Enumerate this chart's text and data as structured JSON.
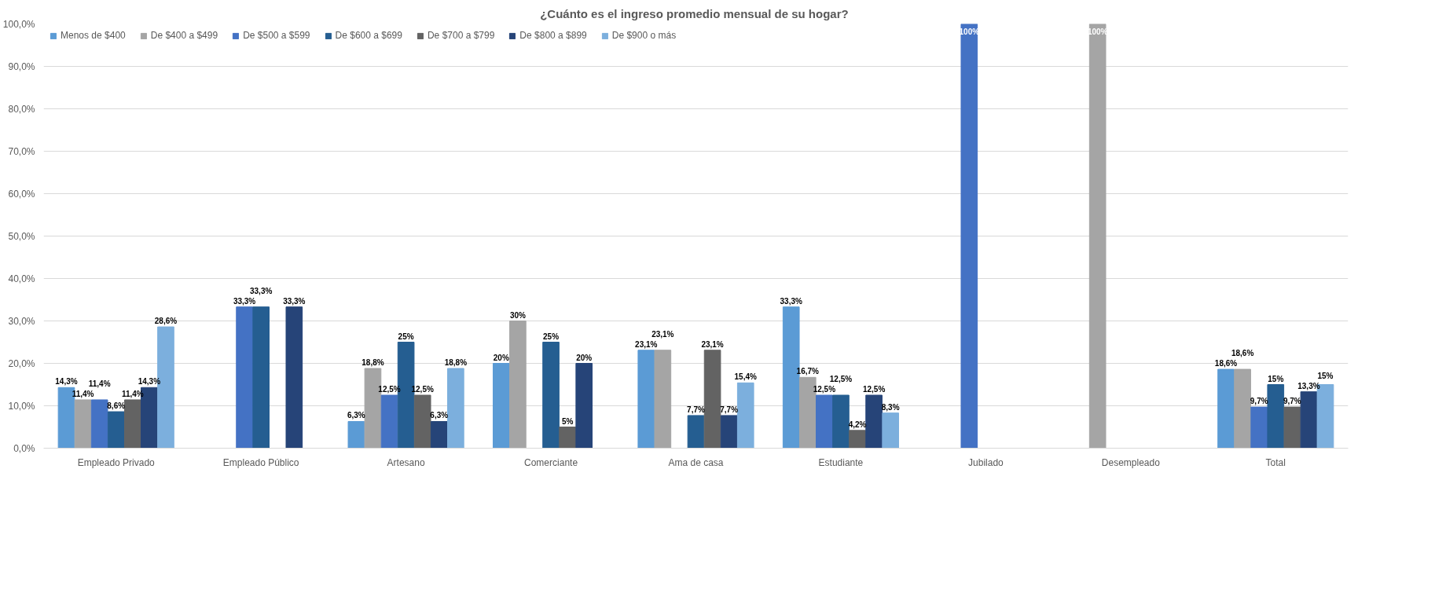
{
  "chart_data": {
    "type": "bar",
    "title": "¿Cuánto es el ingreso  promedio mensual de su hogar?",
    "categories": [
      "Empleado Privado",
      "Empleado Público",
      "Artesano",
      "Comerciante",
      "Ama de casa",
      "Estudiante",
      "Jubilado",
      "Desempleado",
      "Total"
    ],
    "series": [
      {
        "name": "Menos de $400",
        "color": "#5b9bd5",
        "values": [
          14.3,
          null,
          6.3,
          20,
          23.1,
          33.3,
          null,
          null,
          18.6
        ],
        "value_labels": [
          "14,3%",
          null,
          "6,3%",
          "20%",
          "23,1%",
          "33,3%",
          null,
          null,
          "18,6%"
        ]
      },
      {
        "name": "De $400 a $499",
        "color": "#a5a5a5",
        "values": [
          11.4,
          null,
          18.8,
          30,
          23.1,
          16.7,
          null,
          100,
          18.6
        ],
        "value_labels": [
          "11,4%",
          null,
          "18,8%",
          "30%",
          "23,1%",
          "16,7%",
          null,
          "100%",
          "18,6%"
        ]
      },
      {
        "name": "De $500 a $599",
        "color": "#4472c4",
        "values": [
          11.4,
          33.3,
          12.5,
          null,
          null,
          12.5,
          100,
          null,
          9.7
        ],
        "value_labels": [
          "11,4%",
          "33,3%",
          "12,5%",
          null,
          null,
          "12,5%",
          "100%",
          null,
          "9,7%"
        ]
      },
      {
        "name": "De $600 a $699",
        "color": "#255e91",
        "values": [
          8.6,
          33.3,
          25,
          25,
          7.7,
          12.5,
          null,
          null,
          15
        ],
        "value_labels": [
          "8,6%",
          "33,3%",
          "25%",
          "25%",
          "7,7%",
          "12,5%",
          null,
          null,
          "15%"
        ]
      },
      {
        "name": "De $700 a $799",
        "color": "#636363",
        "values": [
          11.4,
          null,
          12.5,
          5,
          23.1,
          4.2,
          null,
          null,
          9.7
        ],
        "value_labels": [
          "11,4%",
          null,
          "12,5%",
          "5%",
          "23,1%",
          "4,2%",
          null,
          null,
          "9,7%"
        ]
      },
      {
        "name": "De $800 a $899",
        "color": "#264478",
        "values": [
          14.3,
          33.3,
          6.3,
          20,
          7.7,
          12.5,
          null,
          null,
          13.3
        ],
        "value_labels": [
          "14,3%",
          "33,3%",
          "6,3%",
          "20%",
          "7,7%",
          "12,5%",
          null,
          null,
          "13,3%"
        ]
      },
      {
        "name": "De $900 o más",
        "color": "#7cafdd",
        "values": [
          28.6,
          null,
          18.8,
          null,
          15.4,
          8.3,
          null,
          null,
          15
        ],
        "value_labels": [
          "28,6%",
          null,
          "18,8%",
          null,
          "15,4%",
          "8,3%",
          null,
          null,
          "15%"
        ]
      }
    ],
    "ylim": [
      0,
      100
    ],
    "yticks": [
      {
        "value": 0,
        "label": "0,0%"
      },
      {
        "value": 10,
        "label": "10,0%"
      },
      {
        "value": 20,
        "label": "20,0%"
      },
      {
        "value": 30,
        "label": "30,0%"
      },
      {
        "value": 40,
        "label": "40,0%"
      },
      {
        "value": 50,
        "label": "50,0%"
      },
      {
        "value": 60,
        "label": "60,0%"
      },
      {
        "value": 70,
        "label": "70,0%"
      },
      {
        "value": 80,
        "label": "80,0%"
      },
      {
        "value": 90,
        "label": "90,0%"
      },
      {
        "value": 100,
        "label": "100,0%"
      }
    ],
    "grid": "y",
    "legend": "top left"
  }
}
